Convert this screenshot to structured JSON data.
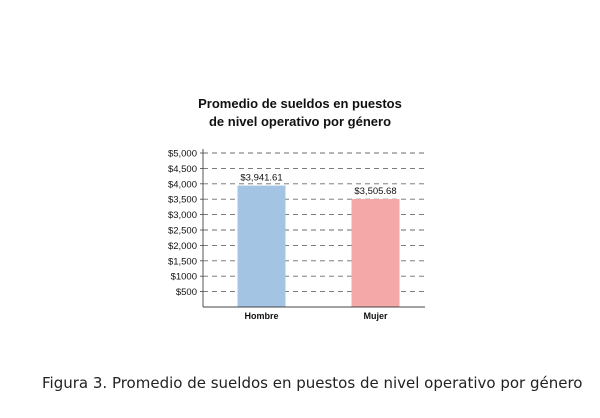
{
  "chart_data": {
    "type": "bar",
    "title_lines": [
      "Promedio de sueldos en puestos",
      "de nivel operativo por género"
    ],
    "categories": [
      "Hombre",
      "Mujer"
    ],
    "values": [
      3941.61,
      3505.68
    ],
    "value_labels": [
      "$3,941.61",
      "$3,505.68"
    ],
    "bar_colors": [
      "#a3c4e2",
      "#f4a8a8"
    ],
    "ylim": [
      0,
      5000
    ],
    "yticks": [
      500,
      1000,
      1500,
      2000,
      2500,
      3000,
      3500,
      4000,
      4500,
      5000
    ],
    "ytick_labels": [
      "$500",
      "$1000",
      "$1,500",
      "$2,000",
      "$2,500",
      "$3,000",
      "$3,500",
      "$4,000",
      "$4,500",
      "$5,000"
    ],
    "grid": true,
    "grid_style": "dashed",
    "legend": "none",
    "xlabel": "",
    "ylabel": ""
  },
  "caption": {
    "label": "Figura 3.",
    "text": " Promedio de sueldos en puestos de nivel operativo por género"
  }
}
